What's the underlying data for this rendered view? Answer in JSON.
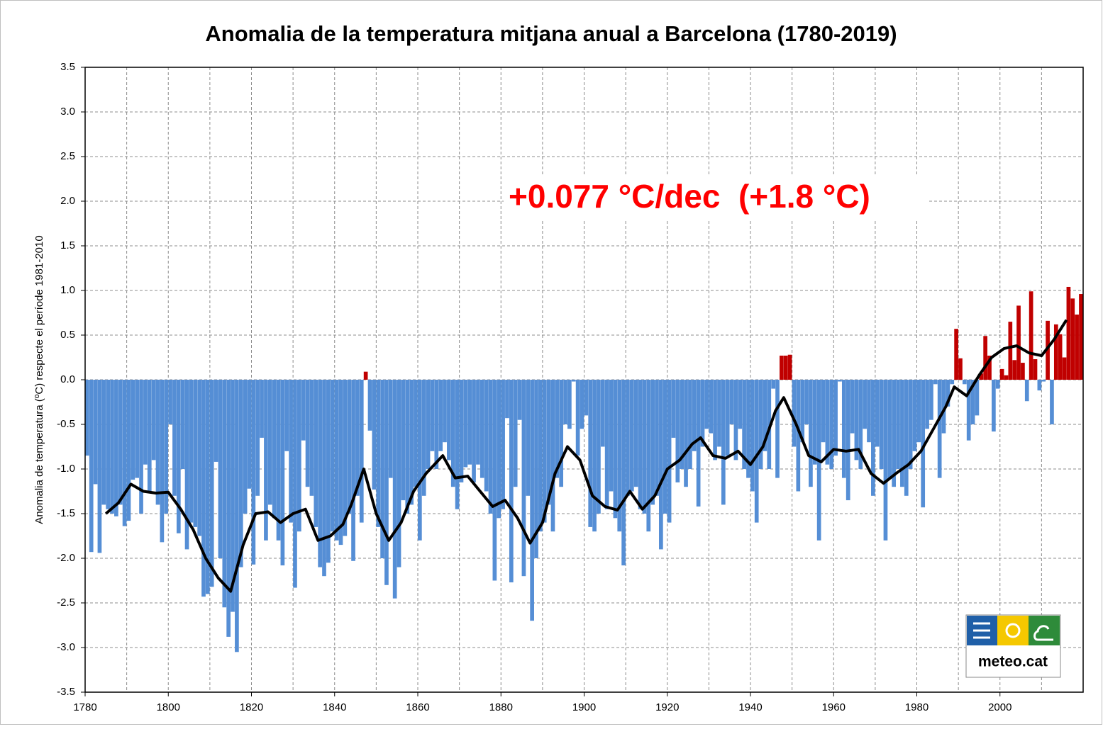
{
  "chart_data": {
    "type": "bar",
    "title": "Anomalia de la temperatura mitjana anual a Barcelona (1780-2019)",
    "y_label": "Anomalia  de temperatura (ºC) respecte el període 1981-2010",
    "annotation": "+0.077 °C/dec  (+1.8 °C)",
    "logo_text": "meteo.cat",
    "color_negative": "#558ed5",
    "color_positive": "#c00000",
    "line_color": "#000000",
    "grid": true,
    "x_grid_step": 10,
    "xlim": [
      1780,
      2020
    ],
    "xticks": [
      1780,
      1800,
      1820,
      1840,
      1860,
      1880,
      1900,
      1920,
      1940,
      1960,
      1980,
      2000
    ],
    "ylim": [
      -3.5,
      3.5
    ],
    "yticks": [
      3.5,
      {
        "value": 3,
        "label": "3.0"
      },
      2.5,
      {
        "value": 2,
        "label": "2.0"
      },
      1.5,
      {
        "value": 1,
        "label": "1.0"
      },
      0.5,
      {
        "value": 0,
        "label": "0.0"
      },
      -0.5,
      {
        "value": -1,
        "label": "-1.0"
      },
      -1.5,
      {
        "value": -2,
        "label": "-2.0"
      },
      -2.5,
      {
        "value": -3,
        "label": "-3.0"
      },
      -3.5
    ],
    "x": [
      1780,
      1781,
      1782,
      1783,
      1784,
      1785,
      1786,
      1787,
      1788,
      1789,
      1790,
      1791,
      1792,
      1793,
      1794,
      1795,
      1796,
      1797,
      1798,
      1799,
      1800,
      1801,
      1802,
      1803,
      1804,
      1805,
      1806,
      1807,
      1808,
      1809,
      1810,
      1811,
      1812,
      1813,
      1814,
      1815,
      1816,
      1817,
      1818,
      1819,
      1820,
      1821,
      1822,
      1823,
      1824,
      1825,
      1826,
      1827,
      1828,
      1829,
      1830,
      1831,
      1832,
      1833,
      1834,
      1835,
      1836,
      1837,
      1838,
      1839,
      1840,
      1841,
      1842,
      1843,
      1844,
      1845,
      1846,
      1847,
      1848,
      1849,
      1850,
      1851,
      1852,
      1853,
      1854,
      1855,
      1856,
      1857,
      1858,
      1859,
      1860,
      1861,
      1862,
      1863,
      1864,
      1865,
      1866,
      1867,
      1868,
      1869,
      1870,
      1871,
      1872,
      1873,
      1874,
      1875,
      1876,
      1877,
      1878,
      1879,
      1880,
      1881,
      1882,
      1883,
      1884,
      1885,
      1886,
      1887,
      1888,
      1889,
      1890,
      1891,
      1892,
      1893,
      1894,
      1895,
      1896,
      1897,
      1898,
      1899,
      1900,
      1901,
      1902,
      1903,
      1904,
      1905,
      1906,
      1907,
      1908,
      1909,
      1910,
      1911,
      1912,
      1913,
      1914,
      1915,
      1916,
      1917,
      1918,
      1919,
      1920,
      1921,
      1922,
      1923,
      1924,
      1925,
      1926,
      1927,
      1928,
      1929,
      1930,
      1931,
      1932,
      1933,
      1934,
      1935,
      1936,
      1937,
      1938,
      1939,
      1940,
      1941,
      1942,
      1943,
      1944,
      1945,
      1946,
      1947,
      1948,
      1949,
      1950,
      1951,
      1952,
      1953,
      1954,
      1955,
      1956,
      1957,
      1958,
      1959,
      1960,
      1961,
      1962,
      1963,
      1964,
      1965,
      1966,
      1967,
      1968,
      1969,
      1970,
      1971,
      1972,
      1973,
      1974,
      1975,
      1976,
      1977,
      1978,
      1979,
      1980,
      1981,
      1982,
      1983,
      1984,
      1985,
      1986,
      1987,
      1988,
      1989,
      1990,
      1991,
      1992,
      1993,
      1994,
      1995,
      1996,
      1997,
      1998,
      1999,
      2000,
      2001,
      2002,
      2003,
      2004,
      2005,
      2006,
      2007,
      2008,
      2009,
      2010,
      2011,
      2012,
      2013,
      2014,
      2015,
      2016,
      2017,
      2018,
      2019
    ],
    "values": [
      -0.85,
      -1.93,
      -1.17,
      -1.94,
      -1.4,
      -1.45,
      -1.5,
      -1.53,
      -1.4,
      -1.64,
      -1.58,
      -1.12,
      -1.1,
      -1.5,
      -0.95,
      -1.27,
      -0.9,
      -1.4,
      -1.82,
      -1.5,
      -0.5,
      -1.3,
      -1.72,
      -1.0,
      -1.9,
      -1.6,
      -1.65,
      -1.75,
      -2.43,
      -2.4,
      -2.32,
      -0.92,
      -2.0,
      -2.55,
      -2.88,
      -2.6,
      -3.05,
      -2.1,
      -1.5,
      -1.22,
      -2.07,
      -1.3,
      -0.65,
      -1.8,
      -1.4,
      -1.55,
      -1.8,
      -2.08,
      -0.8,
      -1.6,
      -2.33,
      -1.7,
      -0.68,
      -1.2,
      -1.3,
      -1.65,
      -2.1,
      -2.2,
      -2.05,
      -1.7,
      -1.8,
      -1.85,
      -1.75,
      -1.5,
      -2.03,
      -1.3,
      -1.6,
      0.09,
      -0.57,
      -1.23,
      -1.65,
      -2.0,
      -2.3,
      -1.1,
      -2.45,
      -2.1,
      -1.35,
      -1.5,
      -1.4,
      -1.2,
      -1.8,
      -1.3,
      -1.0,
      -0.8,
      -1.0,
      -0.8,
      -0.7,
      -0.9,
      -1.2,
      -1.45,
      -1.15,
      -0.98,
      -0.95,
      -1.15,
      -0.95,
      -1.1,
      -1.25,
      -1.5,
      -2.25,
      -1.55,
      -1.45,
      -0.43,
      -2.27,
      -1.2,
      -0.45,
      -2.2,
      -1.3,
      -2.7,
      -2.0,
      -1.7,
      -1.6,
      -1.4,
      -1.7,
      -1.1,
      -1.2,
      -0.5,
      -0.55,
      -0.02,
      -0.85,
      -0.55,
      -0.4,
      -1.65,
      -1.7,
      -1.5,
      -0.75,
      -1.45,
      -1.25,
      -1.55,
      -1.7,
      -2.08,
      -1.3,
      -1.25,
      -1.2,
      -1.45,
      -1.5,
      -1.7,
      -1.4,
      -1.3,
      -1.9,
      -1.5,
      -1.6,
      -0.65,
      -1.15,
      -1.0,
      -1.2,
      -1.0,
      -0.8,
      -1.42,
      -0.75,
      -0.55,
      -0.6,
      -0.9,
      -0.75,
      -1.4,
      -0.85,
      -0.5,
      -0.9,
      -0.55,
      -1.0,
      -1.1,
      -1.25,
      -1.6,
      -1.0,
      -0.8,
      -1.0,
      -0.1,
      -1.1,
      0.27,
      0.27,
      0.28,
      -0.75,
      -1.25,
      -0.7,
      -0.5,
      -1.2,
      -0.95,
      -1.8,
      -0.7,
      -0.95,
      -1.0,
      -0.85,
      -0.02,
      -1.1,
      -1.35,
      -0.6,
      -0.9,
      -1.0,
      -0.55,
      -0.7,
      -1.3,
      -0.75,
      -1.0,
      -1.8,
      -1.1,
      -1.2,
      -1.0,
      -1.2,
      -1.3,
      -1.0,
      -0.8,
      -0.7,
      -1.43,
      -0.55,
      -0.45,
      -0.05,
      -1.1,
      -0.6,
      -0.3,
      -0.05,
      0.57,
      0.24,
      -0.05,
      -0.68,
      -0.5,
      -0.4,
      0.07,
      0.49,
      0.27,
      -0.58,
      -0.1,
      0.12,
      0.05,
      0.65,
      0.22,
      0.83,
      0.19,
      -0.24,
      0.99,
      0.23,
      -0.12,
      -0.02,
      0.66,
      -0.5,
      0.62,
      0.51,
      0.25,
      1.04,
      0.91,
      0.73,
      0.96
    ],
    "smooth": {
      "x": [
        1785,
        1788,
        1791,
        1794,
        1797,
        1800,
        1803,
        1806,
        1809,
        1812,
        1815,
        1818,
        1821,
        1824,
        1827,
        1830,
        1833,
        1836,
        1839,
        1842,
        1844,
        1847,
        1850,
        1853,
        1856,
        1859,
        1862,
        1866,
        1869,
        1872,
        1875,
        1878,
        1881,
        1884,
        1887,
        1890,
        1893,
        1896,
        1899,
        1902,
        1905,
        1908,
        1911,
        1914,
        1917,
        1920,
        1923,
        1926,
        1928,
        1931,
        1934,
        1937,
        1940,
        1943,
        1946,
        1948,
        1951,
        1954,
        1957,
        1960,
        1963,
        1966,
        1969,
        1972,
        1975,
        1978,
        1981,
        1984,
        1987,
        1989,
        1992,
        1995,
        1998,
        2001,
        2004,
        2007,
        2010,
        2013,
        2016
      ],
      "values": [
        -1.5,
        -1.38,
        -1.17,
        -1.25,
        -1.27,
        -1.26,
        -1.45,
        -1.68,
        -2.0,
        -2.22,
        -2.37,
        -1.85,
        -1.5,
        -1.48,
        -1.6,
        -1.5,
        -1.45,
        -1.8,
        -1.75,
        -1.62,
        -1.4,
        -1.0,
        -1.5,
        -1.8,
        -1.6,
        -1.25,
        -1.05,
        -0.85,
        -1.1,
        -1.08,
        -1.25,
        -1.42,
        -1.35,
        -1.55,
        -1.83,
        -1.6,
        -1.05,
        -0.75,
        -0.9,
        -1.3,
        -1.42,
        -1.46,
        -1.25,
        -1.45,
        -1.3,
        -1.0,
        -0.9,
        -0.72,
        -0.65,
        -0.85,
        -0.88,
        -0.8,
        -0.95,
        -0.75,
        -0.35,
        -0.2,
        -0.5,
        -0.85,
        -0.92,
        -0.78,
        -0.8,
        -0.78,
        -1.05,
        -1.16,
        -1.05,
        -0.95,
        -0.8,
        -0.55,
        -0.3,
        -0.08,
        -0.18,
        0.05,
        0.25,
        0.35,
        0.38,
        0.3,
        0.27,
        0.45,
        0.67
      ]
    }
  }
}
